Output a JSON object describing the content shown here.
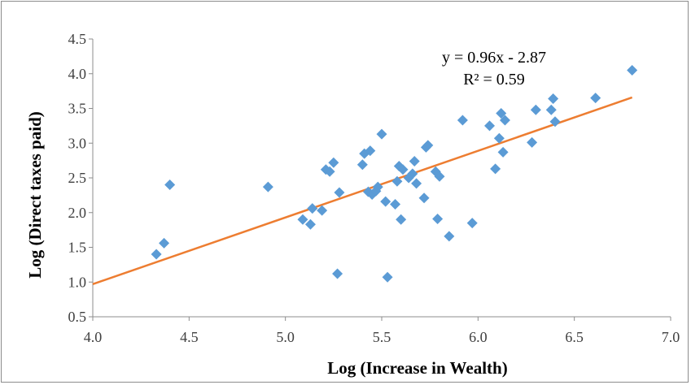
{
  "chart_data": {
    "type": "scatter",
    "xlabel": "Log (Increase in Wealth)",
    "ylabel": "Log (Direct taxes paid)",
    "xlim": [
      4.0,
      7.0
    ],
    "ylim": [
      0.5,
      4.5
    ],
    "x_ticks": [
      "4.0",
      "4.5",
      "5.0",
      "5.5",
      "6.0",
      "6.5",
      "7.0"
    ],
    "y_ticks": [
      "0.5",
      "1.0",
      "1.5",
      "2.0",
      "2.5",
      "3.0",
      "3.5",
      "4.0",
      "4.5"
    ],
    "grid": false,
    "legend": "none",
    "colors": {
      "points": "#5b9bd5",
      "trendline": "#ed7d31"
    },
    "trendline": {
      "slope": 0.96,
      "intercept": -2.87,
      "x_range": [
        4.0,
        6.8
      ],
      "equation": "y = 0.96x - 2.87",
      "r2_label": "R² = 0.59"
    },
    "series": [
      {
        "points": [
          [
            4.33,
            1.4
          ],
          [
            4.37,
            1.56
          ],
          [
            4.4,
            2.4
          ],
          [
            4.91,
            2.37
          ],
          [
            5.09,
            1.9
          ],
          [
            5.13,
            1.83
          ],
          [
            5.14,
            2.06
          ],
          [
            5.19,
            2.03
          ],
          [
            5.21,
            2.62
          ],
          [
            5.23,
            2.59
          ],
          [
            5.25,
            2.72
          ],
          [
            5.27,
            1.12
          ],
          [
            5.28,
            2.29
          ],
          [
            5.4,
            2.69
          ],
          [
            5.41,
            2.85
          ],
          [
            5.43,
            2.3
          ],
          [
            5.44,
            2.89
          ],
          [
            5.45,
            2.26
          ],
          [
            5.47,
            2.31
          ],
          [
            5.48,
            2.37
          ],
          [
            5.5,
            3.13
          ],
          [
            5.52,
            2.16
          ],
          [
            5.53,
            1.07
          ],
          [
            5.57,
            2.12
          ],
          [
            5.58,
            2.45
          ],
          [
            5.59,
            2.67
          ],
          [
            5.6,
            1.9
          ],
          [
            5.61,
            2.62
          ],
          [
            5.64,
            2.5
          ],
          [
            5.66,
            2.56
          ],
          [
            5.67,
            2.74
          ],
          [
            5.68,
            2.42
          ],
          [
            5.72,
            2.21
          ],
          [
            5.73,
            2.94
          ],
          [
            5.74,
            2.97
          ],
          [
            5.78,
            2.59
          ],
          [
            5.79,
            1.91
          ],
          [
            5.8,
            2.52
          ],
          [
            5.85,
            1.66
          ],
          [
            5.92,
            3.33
          ],
          [
            5.97,
            1.85
          ],
          [
            6.06,
            3.25
          ],
          [
            6.09,
            2.63
          ],
          [
            6.11,
            3.07
          ],
          [
            6.12,
            3.43
          ],
          [
            6.13,
            2.87
          ],
          [
            6.14,
            3.33
          ],
          [
            6.28,
            3.01
          ],
          [
            6.3,
            3.48
          ],
          [
            6.38,
            3.48
          ],
          [
            6.39,
            3.64
          ],
          [
            6.4,
            3.31
          ],
          [
            6.61,
            3.65
          ],
          [
            6.8,
            4.05
          ]
        ]
      }
    ]
  }
}
